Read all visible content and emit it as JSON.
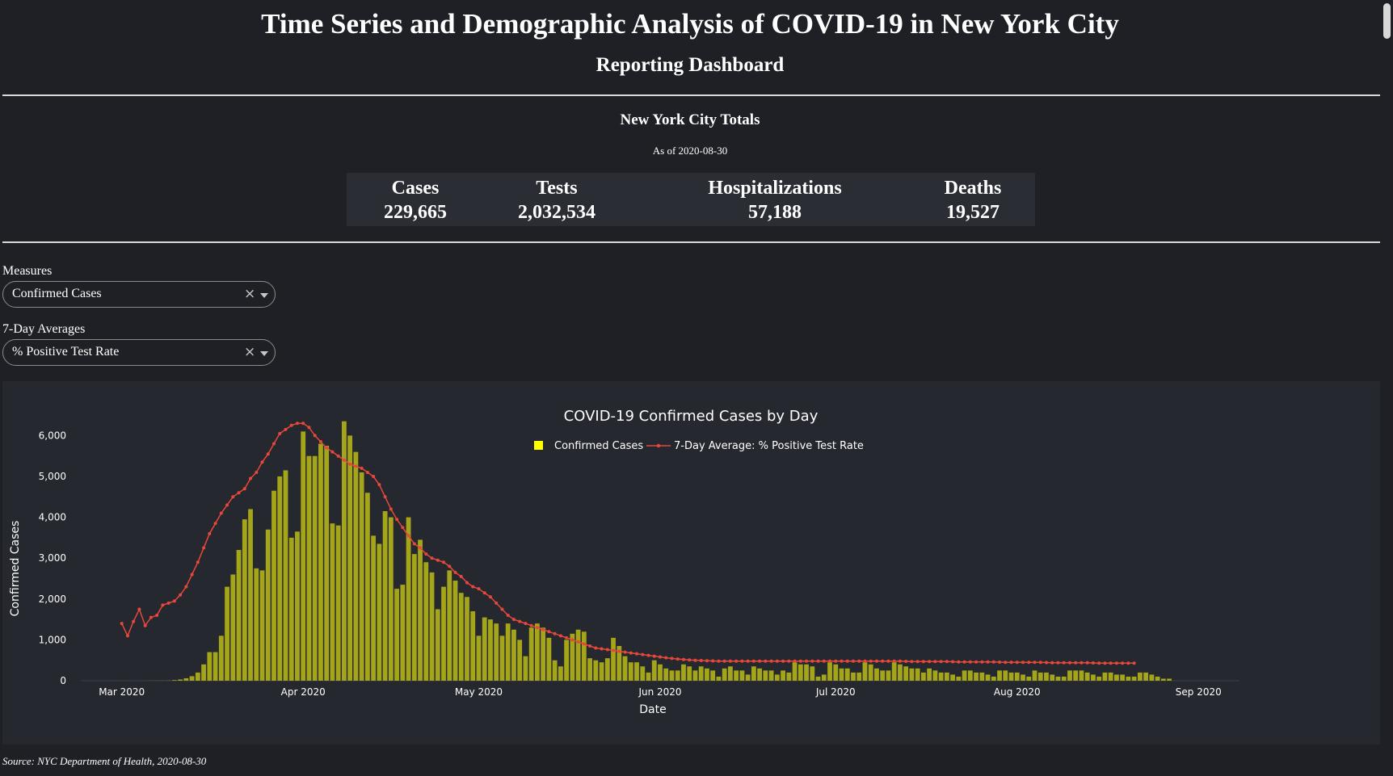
{
  "header": {
    "title": "Time Series and Demographic Analysis of COVID-19 in New York City",
    "subtitle": "Reporting Dashboard"
  },
  "totals": {
    "title": "New York City Totals",
    "as_of": "As of 2020-08-30",
    "stats": [
      {
        "label": "Cases",
        "value": "229,665"
      },
      {
        "label": "Tests",
        "value": "2,032,534"
      },
      {
        "label": "Hospitalizations",
        "value": "57,188"
      },
      {
        "label": "Deaths",
        "value": "19,527"
      }
    ]
  },
  "controls": {
    "measures_label": "Measures",
    "measures_value": "Confirmed Cases",
    "averages_label": "7-Day Averages",
    "averages_value": "% Positive Test Rate",
    "clear_glyph": "×"
  },
  "colors": {
    "background": "#1e2025",
    "panel": "#25282e",
    "bar": "#a5a51a",
    "legend_bar": "#ffff00",
    "line": "#e8473b"
  },
  "chart_data": {
    "type": "bar",
    "title": "COVID-19 Confirmed Cases by Day",
    "xlabel": "Date",
    "ylabel": "Confirmed Cases",
    "x_ticks": [
      "Mar 2020",
      "Apr 2020",
      "May 2020",
      "Jun 2020",
      "Jul 2020",
      "Aug 2020",
      "Sep 2020"
    ],
    "x_tick_dates": [
      "2020-03-01",
      "2020-04-01",
      "2020-05-01",
      "2020-06-01",
      "2020-07-01",
      "2020-08-01",
      "2020-09-01"
    ],
    "x_range": [
      "2020-02-23",
      "2020-09-08"
    ],
    "y_ticks": [
      "0",
      "1,000",
      "2,000",
      "3,000",
      "4,000",
      "5,000",
      "6,000"
    ],
    "y_tick_values": [
      0,
      1000,
      2000,
      3000,
      4000,
      5000,
      6000
    ],
    "ylim": [
      0,
      6700
    ],
    "legend_position": "top-center",
    "grid": false,
    "series": [
      {
        "name": "Confirmed Cases",
        "type": "bar",
        "start_date": "2020-02-29",
        "values": [
          1,
          0,
          1,
          0,
          0,
          1,
          2,
          2,
          3,
          5,
          15,
          30,
          60,
          110,
          200,
          400,
          700,
          700,
          1100,
          2300,
          2600,
          3200,
          3950,
          4200,
          2750,
          2700,
          3700,
          4650,
          5000,
          5150,
          3500,
          3650,
          6100,
          5500,
          5500,
          5800,
          5750,
          3850,
          3800,
          6350,
          6000,
          5600,
          5100,
          4600,
          3550,
          3350,
          4150,
          4000,
          2250,
          2350,
          4000,
          3100,
          3450,
          2900,
          2650,
          1750,
          2300,
          2700,
          2450,
          2150,
          2050,
          1700,
          1100,
          1550,
          1500,
          1400,
          1100,
          1400,
          1250,
          1000,
          600,
          1300,
          1400,
          1300,
          1050,
          500,
          350,
          1000,
          1150,
          1250,
          1200,
          550,
          500,
          450,
          550,
          1050,
          850,
          600,
          450,
          450,
          350,
          200,
          500,
          400,
          300,
          250,
          250,
          400,
          350,
          250,
          350,
          300,
          250,
          100,
          300,
          350,
          250,
          250,
          150,
          350,
          300,
          250,
          250,
          150,
          250,
          200,
          450,
          400,
          400,
          350,
          100,
          150,
          450,
          400,
          300,
          300,
          200,
          200,
          450,
          400,
          300,
          250,
          250,
          450,
          400,
          350,
          300,
          300,
          200,
          300,
          250,
          200,
          200,
          150,
          100,
          250,
          250,
          200,
          200,
          150,
          100,
          250,
          250,
          200,
          200,
          150,
          100,
          250,
          200,
          200,
          150,
          100,
          100,
          250,
          250,
          250,
          200,
          150,
          100,
          200,
          200,
          150,
          150,
          100,
          100,
          200,
          200,
          150,
          100,
          50,
          50
        ]
      },
      {
        "name": "7-Day Average: % Positive Test Rate",
        "type": "line",
        "start_date": "2020-03-01",
        "values": [
          1400,
          1100,
          1450,
          1750,
          1350,
          1550,
          1600,
          1850,
          1900,
          1950,
          2100,
          2300,
          2600,
          2900,
          3250,
          3600,
          3850,
          4100,
          4300,
          4500,
          4600,
          4700,
          4950,
          5100,
          5350,
          5550,
          5800,
          6050,
          6150,
          6250,
          6300,
          6300,
          6200,
          6000,
          5850,
          5700,
          5600,
          5500,
          5400,
          5300,
          5250,
          5200,
          5100,
          5000,
          4800,
          4500,
          4200,
          3950,
          3750,
          3550,
          3350,
          3250,
          3100,
          3000,
          2950,
          2900,
          2800,
          2650,
          2550,
          2400,
          2300,
          2250,
          2150,
          2050,
          1900,
          1750,
          1600,
          1500,
          1450,
          1400,
          1350,
          1300,
          1250,
          1200,
          1150,
          1100,
          1050,
          1000,
          950,
          900,
          850,
          800,
          780,
          760,
          740,
          720,
          700,
          680,
          660,
          640,
          620,
          600,
          580,
          560,
          545,
          530,
          520,
          510,
          500,
          495,
          490,
          485,
          480,
          480,
          480,
          480,
          480,
          480,
          480,
          480,
          480,
          480,
          480,
          480,
          480,
          480,
          480,
          480,
          480,
          480,
          480,
          480,
          480,
          480,
          480,
          480,
          480,
          480,
          480,
          480,
          480,
          480,
          480,
          480,
          475,
          470,
          470,
          470,
          470,
          470,
          470,
          470,
          465,
          460,
          460,
          460,
          460,
          460,
          460,
          460,
          455,
          450,
          450,
          450,
          450,
          450,
          450,
          450,
          445,
          440,
          440,
          440,
          440,
          440,
          440,
          440,
          435,
          430,
          430,
          430,
          430,
          430,
          430,
          430
        ]
      }
    ]
  },
  "footer": {
    "source": "Source: NYC Department of Health, 2020-08-30"
  }
}
